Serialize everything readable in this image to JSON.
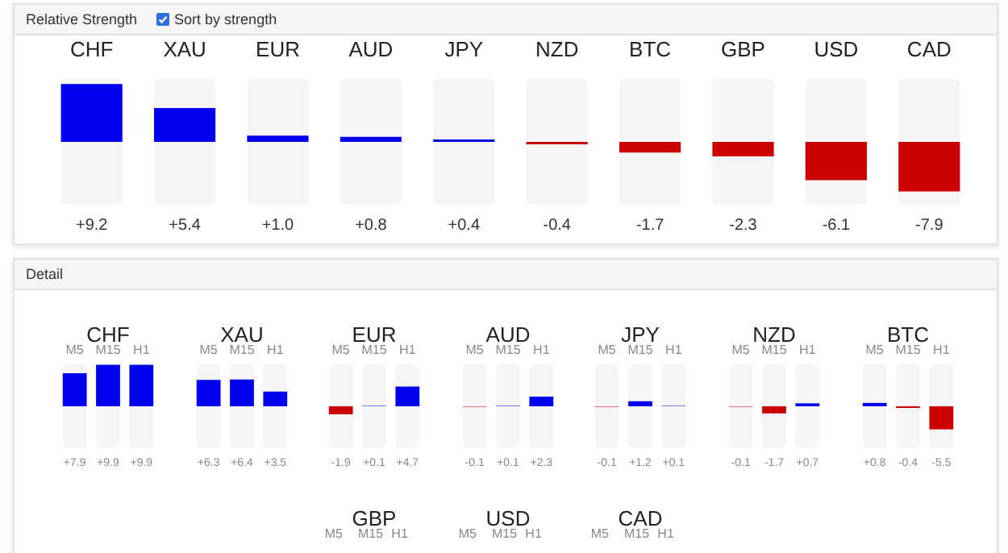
{
  "chart_data": [
    {
      "type": "bar",
      "title": "Relative Strength",
      "annotations": [
        "Sort by strength"
      ],
      "categories": [
        "CHF",
        "XAU",
        "EUR",
        "AUD",
        "JPY",
        "NZD",
        "BTC",
        "GBP",
        "USD",
        "CAD"
      ],
      "values": [
        9.2,
        5.4,
        1.0,
        0.8,
        0.4,
        -0.4,
        -1.7,
        -2.3,
        -6.1,
        -7.9
      ],
      "value_labels": [
        "+9.2",
        "+5.4",
        "+1.0",
        "+0.8",
        "+0.4",
        "-0.4",
        "-1.7",
        "-2.3",
        "-6.1",
        "-7.9"
      ],
      "colors": [
        "#0000ee",
        "#0000ee",
        "#0000ee",
        "#0000ee",
        "#0000ee",
        "#cc0000",
        "#cc0000",
        "#cc0000",
        "#cc0000",
        "#cc0000"
      ],
      "ylim": [
        -10,
        10
      ],
      "tick_labels": "x"
    },
    {
      "type": "bar",
      "title": "CHF",
      "annotations": [
        "Detail"
      ],
      "categories": [
        "M5",
        "M15",
        "H1"
      ],
      "values": [
        7.9,
        9.9,
        9.9
      ],
      "value_labels": [
        "+7.9",
        "+9.9",
        "+9.9"
      ],
      "colors": [
        "#0000ee",
        "#0000ee",
        "#0000ee"
      ],
      "ylim": [
        -10,
        10
      ],
      "tick_labels": "x"
    },
    {
      "type": "bar",
      "title": "XAU",
      "categories": [
        "M5",
        "M15",
        "H1"
      ],
      "values": [
        6.3,
        6.4,
        3.5
      ],
      "value_labels": [
        "+6.3",
        "+6.4",
        "+3.5"
      ],
      "colors": [
        "#0000ee",
        "#0000ee",
        "#0000ee"
      ],
      "ylim": [
        -10,
        10
      ],
      "tick_labels": "x"
    },
    {
      "type": "bar",
      "title": "EUR",
      "categories": [
        "M5",
        "M15",
        "H1"
      ],
      "values": [
        -1.9,
        0.1,
        4.7
      ],
      "value_labels": [
        "-1.9",
        "+0.1",
        "+4.7"
      ],
      "colors": [
        "#cc0000",
        "#0000ee",
        "#0000ee"
      ],
      "ylim": [
        -10,
        10
      ],
      "tick_labels": "x"
    },
    {
      "type": "bar",
      "title": "AUD",
      "categories": [
        "M5",
        "M15",
        "H1"
      ],
      "values": [
        -0.1,
        0.1,
        2.3
      ],
      "value_labels": [
        "-0.1",
        "+0.1",
        "+2.3"
      ],
      "colors": [
        "#cc0000",
        "#0000ee",
        "#0000ee"
      ],
      "ylim": [
        -10,
        10
      ],
      "tick_labels": "x"
    },
    {
      "type": "bar",
      "title": "JPY",
      "categories": [
        "M5",
        "M15",
        "H1"
      ],
      "values": [
        -0.1,
        1.2,
        0.1
      ],
      "value_labels": [
        "-0.1",
        "+1.2",
        "+0.1"
      ],
      "colors": [
        "#cc0000",
        "#0000ee",
        "#0000ee"
      ],
      "ylim": [
        -10,
        10
      ],
      "tick_labels": "x"
    },
    {
      "type": "bar",
      "title": "NZD",
      "categories": [
        "M5",
        "M15",
        "H1"
      ],
      "values": [
        -0.1,
        -1.7,
        0.7
      ],
      "value_labels": [
        "-0.1",
        "-1.7",
        "+0.7"
      ],
      "colors": [
        "#cc0000",
        "#cc0000",
        "#0000ee"
      ],
      "ylim": [
        -10,
        10
      ],
      "tick_labels": "x"
    },
    {
      "type": "bar",
      "title": "BTC",
      "categories": [
        "M5",
        "M15",
        "H1"
      ],
      "values": [
        0.8,
        -0.4,
        -5.5
      ],
      "value_labels": [
        "+0.8",
        "-0.4",
        "-5.5"
      ],
      "colors": [
        "#0000ee",
        "#cc0000",
        "#cc0000"
      ],
      "ylim": [
        -10,
        10
      ],
      "tick_labels": "x"
    },
    {
      "type": "other",
      "title": "GBP",
      "annotations": [
        "M5",
        "M15",
        "H1"
      ]
    },
    {
      "type": "other",
      "title": "USD",
      "annotations": [
        "M5",
        "M15",
        "H1"
      ]
    },
    {
      "type": "other",
      "title": "CAD",
      "annotations": [
        "M5",
        "M15",
        "H1"
      ]
    }
  ]
}
